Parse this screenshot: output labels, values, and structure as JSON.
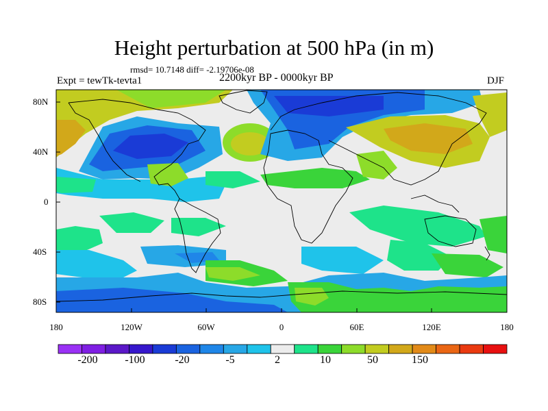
{
  "title": "Height perturbation at 500 hPa (in m)",
  "stats": "rmsd= 10.7148 diff= -2.19706e-08",
  "experiment": "Expt = tewTk-tevta1",
  "period": "2200kyr BP - 0000kyr BP",
  "season": "DJF",
  "lat_labels": [
    "80N",
    "40N",
    "0",
    "40S",
    "80S"
  ],
  "lon_labels": [
    "180",
    "120W",
    "60W",
    "0",
    "60E",
    "120E",
    "180"
  ],
  "colorbar": {
    "labels": [
      "-200",
      "-100",
      "-20",
      "-5",
      "2",
      "10",
      "50",
      "150"
    ],
    "colors": [
      "#9a31f5",
      "#7f1fe3",
      "#5b18c8",
      "#3617cc",
      "#1a3bd6",
      "#1a63e0",
      "#1f86e8",
      "#27a7e6",
      "#1fc3ea",
      "#ececec",
      "#1ee38a",
      "#3ad43a",
      "#8ddc2a",
      "#c2cc20",
      "#d2a81a",
      "#e28a18",
      "#ea6614",
      "#ea3a10",
      "#e81010"
    ],
    "special_colors": {
      "no_change": "#ececec",
      "land_outline": "#000000",
      "map_background": "#ececec"
    }
  }
}
